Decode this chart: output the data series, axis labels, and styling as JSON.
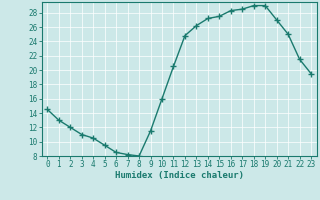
{
  "x": [
    0,
    1,
    2,
    3,
    4,
    5,
    6,
    7,
    8,
    9,
    10,
    11,
    12,
    13,
    14,
    15,
    16,
    17,
    18,
    19,
    20,
    21,
    22,
    23
  ],
  "y": [
    14.5,
    13.0,
    12.0,
    11.0,
    10.5,
    9.5,
    8.5,
    8.2,
    8.0,
    11.5,
    16.0,
    20.5,
    24.8,
    26.2,
    27.2,
    27.5,
    28.3,
    28.5,
    29.0,
    29.0,
    27.0,
    25.0,
    21.5,
    19.5
  ],
  "line_color": "#1a7a6e",
  "marker": "+",
  "markersize": 4,
  "linewidth": 1.0,
  "bg_color": "#cce8e8",
  "grid_color": "#ffffff",
  "xlabel": "Humidex (Indice chaleur)",
  "xlim": [
    -0.5,
    23.5
  ],
  "ylim": [
    8,
    29.5
  ],
  "yticks": [
    8,
    10,
    12,
    14,
    16,
    18,
    20,
    22,
    24,
    26,
    28
  ],
  "xticks": [
    0,
    1,
    2,
    3,
    4,
    5,
    6,
    7,
    8,
    9,
    10,
    11,
    12,
    13,
    14,
    15,
    16,
    17,
    18,
    19,
    20,
    21,
    22,
    23
  ],
  "xlabel_fontsize": 6.5,
  "tick_fontsize": 5.5,
  "tick_color": "#1a7a6e",
  "axis_color": "#1a7a6e",
  "grid_linewidth": 0.5
}
